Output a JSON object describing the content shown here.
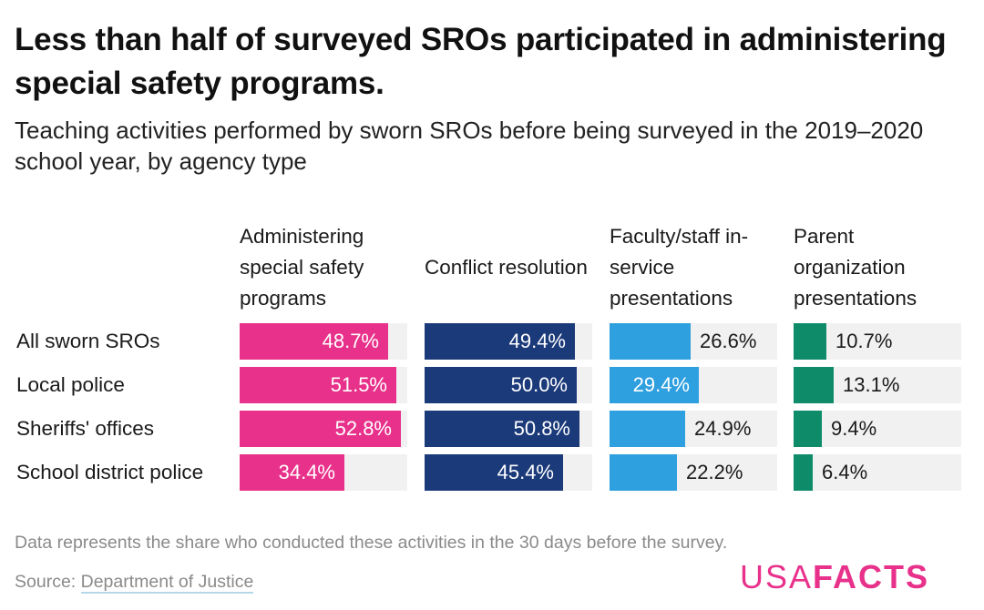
{
  "title": "Less than half of surveyed SROs participated in administering special safety programs.",
  "subtitle": "Teaching activities performed by sworn SROs before being surveyed in the 2019–2020 school year, by agency type",
  "note": "Data represents the share who conducted these activities in the 30 days before the survey.",
  "source_prefix": "Source: ",
  "source_link": "Department of Justice",
  "logo": {
    "usa": "USA",
    "facts": "FACTS"
  },
  "chart_data": {
    "type": "bar",
    "orientation": "horizontal",
    "layout": "small-multiples",
    "value_format": "percent",
    "xlim": [
      0,
      55
    ],
    "categories": [
      "All sworn SROs",
      "Local police",
      "Sheriffs' offices",
      "School district police"
    ],
    "series": [
      {
        "name": "Administering special safety programs",
        "color": "#e8318a",
        "values": [
          48.7,
          51.5,
          52.8,
          34.4
        ]
      },
      {
        "name": "Conflict resolution",
        "color": "#1b3a7a",
        "values": [
          49.4,
          50.0,
          50.8,
          45.4
        ]
      },
      {
        "name": "Faculty/staff in-service presentations",
        "color": "#2e9fdf",
        "values": [
          26.6,
          29.4,
          24.9,
          22.2
        ]
      },
      {
        "name": "Parent organization presentations",
        "color": "#0e8c6a",
        "values": [
          10.7,
          13.1,
          9.4,
          6.4
        ]
      }
    ],
    "labels": [
      [
        "48.7%",
        "51.5%",
        "52.8%",
        "34.4%"
      ],
      [
        "49.4%",
        "50.0%",
        "50.8%",
        "45.4%"
      ],
      [
        "26.6%",
        "29.4%",
        "24.9%",
        "22.2%"
      ],
      [
        "10.7%",
        "13.1%",
        "9.4%",
        "6.4%"
      ]
    ],
    "track_color": "#f1f1f1"
  }
}
